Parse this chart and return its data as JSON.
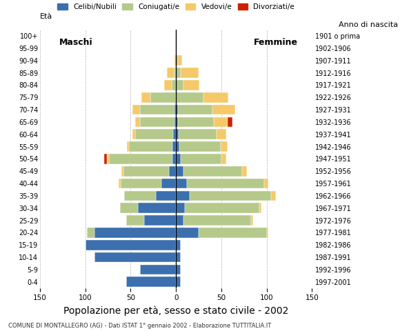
{
  "age_groups": [
    "0-4",
    "5-9",
    "10-14",
    "15-19",
    "20-24",
    "25-29",
    "30-34",
    "35-39",
    "40-44",
    "45-49",
    "50-54",
    "55-59",
    "60-64",
    "65-69",
    "70-74",
    "75-79",
    "80-84",
    "85-89",
    "90-94",
    "95-99",
    "100+"
  ],
  "birth_years": [
    "1997-2001",
    "1992-1996",
    "1987-1991",
    "1982-1986",
    "1977-1981",
    "1972-1976",
    "1967-1971",
    "1962-1966",
    "1957-1961",
    "1952-1956",
    "1947-1951",
    "1942-1946",
    "1937-1941",
    "1932-1936",
    "1927-1931",
    "1922-1926",
    "1917-1921",
    "1912-1916",
    "1907-1911",
    "1902-1906",
    "1901 o prima"
  ],
  "males_celibe": [
    55,
    40,
    90,
    100,
    90,
    35,
    42,
    22,
    16,
    8,
    4,
    4,
    3,
    2,
    2,
    0,
    0,
    0,
    0,
    0,
    0
  ],
  "males_coniugato": [
    0,
    0,
    0,
    0,
    8,
    20,
    20,
    35,
    45,
    50,
    70,
    48,
    42,
    38,
    38,
    28,
    5,
    2,
    0,
    0,
    0
  ],
  "males_vedovo": [
    0,
    0,
    0,
    0,
    0,
    0,
    0,
    0,
    2,
    2,
    2,
    2,
    3,
    5,
    8,
    10,
    8,
    8,
    2,
    0,
    0
  ],
  "males_divorziato": [
    0,
    0,
    0,
    0,
    0,
    0,
    0,
    0,
    0,
    0,
    3,
    0,
    0,
    0,
    0,
    0,
    0,
    0,
    0,
    0,
    0
  ],
  "females_nubile": [
    5,
    5,
    5,
    5,
    25,
    8,
    10,
    15,
    12,
    8,
    5,
    4,
    3,
    2,
    2,
    0,
    0,
    0,
    0,
    0,
    0
  ],
  "females_coniugata": [
    0,
    0,
    0,
    0,
    75,
    75,
    82,
    90,
    85,
    65,
    45,
    45,
    42,
    40,
    38,
    30,
    8,
    5,
    2,
    0,
    0
  ],
  "females_vedova": [
    0,
    0,
    0,
    0,
    2,
    2,
    2,
    5,
    5,
    5,
    5,
    8,
    10,
    15,
    25,
    28,
    18,
    20,
    5,
    0,
    0
  ],
  "females_divorziata": [
    0,
    0,
    0,
    0,
    0,
    0,
    0,
    0,
    0,
    0,
    0,
    0,
    0,
    5,
    0,
    0,
    0,
    0,
    0,
    0,
    0
  ],
  "colors": {
    "celibe": "#3c6fad",
    "coniugato": "#b5c98a",
    "vedovo": "#f5c96a",
    "divorziato": "#cc2200"
  },
  "xlim": 150,
  "title": "Popolazione per età, sesso e stato civile - 2002",
  "subtitle": "COMUNE DI MONTALLEGRO (AG) - Dati ISTAT 1° gennaio 2002 - Elaborazione TUTTITALIA.IT",
  "ylabel_left": "Età",
  "ylabel_right": "Anno di nascita",
  "label_maschi": "Maschi",
  "label_femmine": "Femmine",
  "legend_labels": [
    "Celibi/Nubili",
    "Coniugati/e",
    "Vedovi/e",
    "Divorziati/e"
  ]
}
